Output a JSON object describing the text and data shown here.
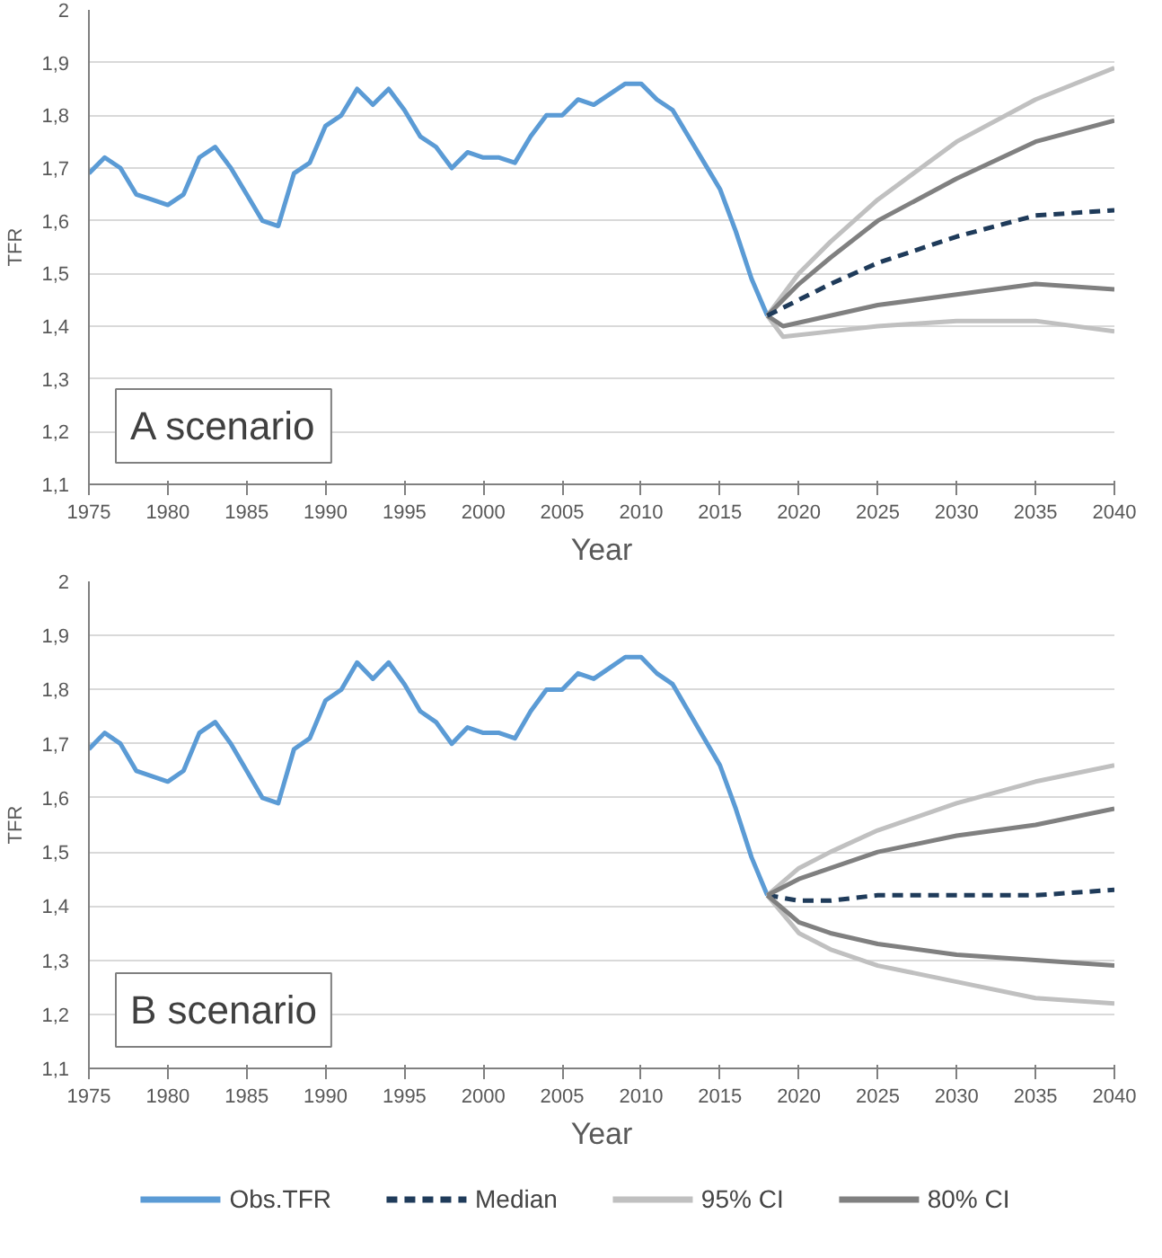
{
  "chart_data": [
    {
      "type": "line",
      "xlabel": "Year",
      "ylabel": "TFR",
      "annotations": [
        "A scenario"
      ],
      "grid": "y",
      "xlim": [
        1975,
        2040
      ],
      "xticks": [
        1975,
        1980,
        1985,
        1990,
        1995,
        2000,
        2005,
        2010,
        2015,
        2020,
        2025,
        2030,
        2035,
        2040
      ],
      "ylim": [
        1.1,
        2
      ],
      "yticks": [
        {
          "value": 1.1,
          "label": "1,1"
        },
        {
          "value": 1.2,
          "label": "1,2"
        },
        {
          "value": 1.3,
          "label": "1,3"
        },
        {
          "value": 1.4,
          "label": "1,4"
        },
        {
          "value": 1.5,
          "label": "1,5"
        },
        {
          "value": 1.6,
          "label": "1,6"
        },
        {
          "value": 1.7,
          "label": "1,7"
        },
        {
          "value": 1.8,
          "label": "1,8"
        },
        {
          "value": 1.9,
          "label": "1,9"
        },
        2
      ],
      "series": [
        {
          "color": "#5b9bd5",
          "line_style": "solid",
          "x": [
            1975,
            1976,
            1977,
            1978,
            1979,
            1980,
            1981,
            1982,
            1983,
            1984,
            1985,
            1986,
            1987,
            1988,
            1989,
            1990,
            1991,
            1992,
            1993,
            1994,
            1995,
            1996,
            1997,
            1998,
            1999,
            2000,
            2001,
            2002,
            2003,
            2004,
            2005,
            2006,
            2007,
            2008,
            2009,
            2010,
            2011,
            2012,
            2013,
            2014,
            2015,
            2016,
            2017,
            2018
          ],
          "values": [
            1.69,
            1.72,
            1.7,
            1.65,
            1.64,
            1.63,
            1.65,
            1.72,
            1.74,
            1.7,
            1.65,
            1.6,
            1.59,
            1.69,
            1.71,
            1.78,
            1.8,
            1.85,
            1.82,
            1.85,
            1.81,
            1.76,
            1.74,
            1.7,
            1.73,
            1.72,
            1.72,
            1.71,
            1.76,
            1.8,
            1.8,
            1.83,
            1.82,
            1.84,
            1.86,
            1.86,
            1.83,
            1.81,
            1.76,
            1.71,
            1.66,
            1.58,
            1.49,
            1.42
          ]
        },
        {
          "color": "#c0c0c0",
          "line_style": "solid",
          "x": [
            2018,
            2020,
            2022,
            2025,
            2030,
            2035,
            2040
          ],
          "values": [
            1.42,
            1.5,
            1.56,
            1.64,
            1.75,
            1.83,
            1.89
          ]
        },
        {
          "color": "#c0c0c0",
          "line_style": "solid",
          "x": [
            2018,
            2019,
            2022,
            2025,
            2030,
            2035,
            2040
          ],
          "values": [
            1.42,
            1.38,
            1.39,
            1.4,
            1.41,
            1.41,
            1.39
          ]
        },
        {
          "color": "#808080",
          "line_style": "solid",
          "x": [
            2018,
            2020,
            2022,
            2025,
            2030,
            2035,
            2040
          ],
          "values": [
            1.42,
            1.48,
            1.53,
            1.6,
            1.68,
            1.75,
            1.79
          ]
        },
        {
          "color": "#808080",
          "line_style": "solid",
          "x": [
            2018,
            2019,
            2022,
            2025,
            2030,
            2035,
            2040
          ],
          "values": [
            1.42,
            1.4,
            1.42,
            1.44,
            1.46,
            1.48,
            1.47
          ]
        },
        {
          "color": "#1f3b5a",
          "line_style": "dashed",
          "x": [
            2018,
            2020,
            2022,
            2025,
            2030,
            2035,
            2040
          ],
          "values": [
            1.42,
            1.45,
            1.48,
            1.52,
            1.57,
            1.61,
            1.62
          ]
        }
      ]
    },
    {
      "type": "line",
      "xlabel": "Year",
      "ylabel": "TFR",
      "annotations": [
        "B scenario"
      ],
      "grid": "y",
      "legend": "bottom",
      "xlim": [
        1975,
        2040
      ],
      "xticks": [
        1975,
        1980,
        1985,
        1990,
        1995,
        2000,
        2005,
        2010,
        2015,
        2020,
        2025,
        2030,
        2035,
        2040
      ],
      "ylim": [
        1.1,
        2
      ],
      "yticks": [
        {
          "value": 1.1,
          "label": "1,1"
        },
        {
          "value": 1.2,
          "label": "1,2"
        },
        {
          "value": 1.3,
          "label": "1,3"
        },
        {
          "value": 1.4,
          "label": "1,4"
        },
        {
          "value": 1.5,
          "label": "1,5"
        },
        {
          "value": 1.6,
          "label": "1,6"
        },
        {
          "value": 1.7,
          "label": "1,7"
        },
        {
          "value": 1.8,
          "label": "1,8"
        },
        {
          "value": 1.9,
          "label": "1,9"
        },
        2
      ],
      "series": [
        {
          "name": "Obs.TFR",
          "color": "#5b9bd5",
          "line_style": "solid",
          "x": [
            1975,
            1976,
            1977,
            1978,
            1979,
            1980,
            1981,
            1982,
            1983,
            1984,
            1985,
            1986,
            1987,
            1988,
            1989,
            1990,
            1991,
            1992,
            1993,
            1994,
            1995,
            1996,
            1997,
            1998,
            1999,
            2000,
            2001,
            2002,
            2003,
            2004,
            2005,
            2006,
            2007,
            2008,
            2009,
            2010,
            2011,
            2012,
            2013,
            2014,
            2015,
            2016,
            2017,
            2018
          ],
          "values": [
            1.69,
            1.72,
            1.7,
            1.65,
            1.64,
            1.63,
            1.65,
            1.72,
            1.74,
            1.7,
            1.65,
            1.6,
            1.59,
            1.69,
            1.71,
            1.78,
            1.8,
            1.85,
            1.82,
            1.85,
            1.81,
            1.76,
            1.74,
            1.7,
            1.73,
            1.72,
            1.72,
            1.71,
            1.76,
            1.8,
            1.8,
            1.83,
            1.82,
            1.84,
            1.86,
            1.86,
            1.83,
            1.81,
            1.76,
            1.71,
            1.66,
            1.58,
            1.49,
            1.42
          ]
        },
        {
          "name": "Median",
          "color": "#1f3b5a",
          "line_style": "dashed",
          "x": [
            2018,
            2020,
            2022,
            2025,
            2030,
            2035,
            2040
          ],
          "values": [
            1.42,
            1.41,
            1.41,
            1.42,
            1.42,
            1.42,
            1.43
          ]
        },
        {
          "name": "95% CI",
          "color": "#c0c0c0",
          "line_style": "solid",
          "x": [
            2018,
            2020,
            2022,
            2025,
            2030,
            2035,
            2040
          ],
          "values": [
            1.42,
            1.47,
            1.5,
            1.54,
            1.59,
            1.63,
            1.66
          ]
        },
        {
          "color": "#c0c0c0",
          "line_style": "solid",
          "x": [
            2018,
            2020,
            2022,
            2025,
            2030,
            2035,
            2040
          ],
          "values": [
            1.42,
            1.35,
            1.32,
            1.29,
            1.26,
            1.23,
            1.22
          ]
        },
        {
          "name": "80% CI",
          "color": "#808080",
          "line_style": "solid",
          "x": [
            2018,
            2020,
            2022,
            2025,
            2030,
            2035,
            2040
          ],
          "values": [
            1.42,
            1.45,
            1.47,
            1.5,
            1.53,
            1.55,
            1.58
          ]
        },
        {
          "color": "#808080",
          "line_style": "solid",
          "x": [
            2018,
            2020,
            2022,
            2025,
            2030,
            2035,
            2040
          ],
          "values": [
            1.42,
            1.37,
            1.35,
            1.33,
            1.31,
            1.3,
            1.29
          ]
        }
      ]
    }
  ]
}
